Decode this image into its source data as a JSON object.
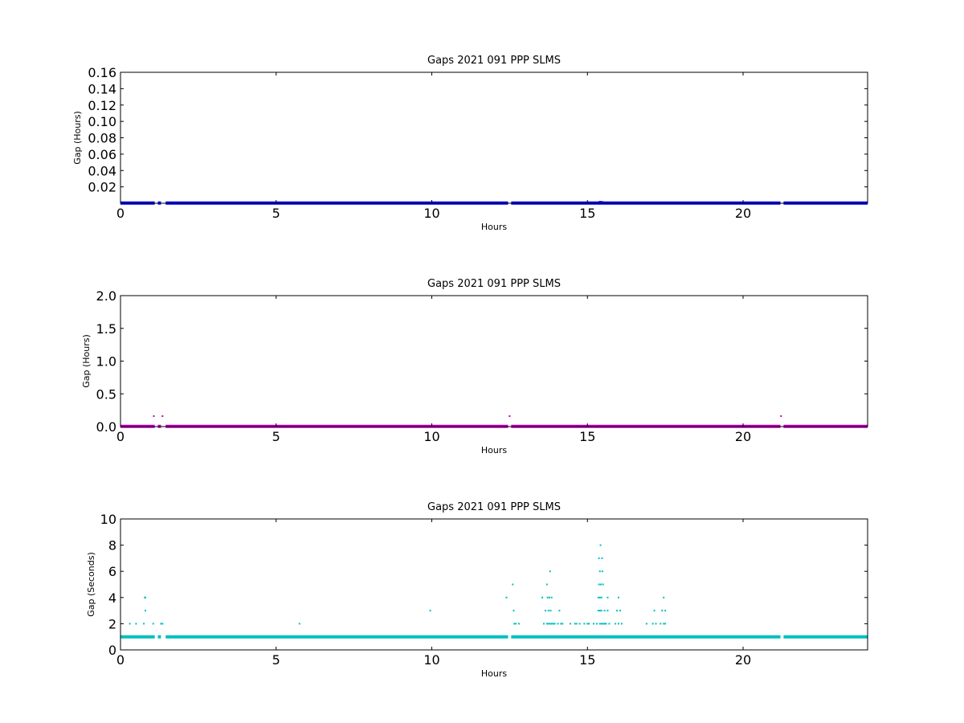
{
  "chart_data": [
    {
      "type": "scatter",
      "title": "Gaps 2021 091 PPP  SLMS",
      "xlabel": "Hours",
      "ylabel": "Gap (Hours)",
      "xlim": [
        0,
        24
      ],
      "ylim": [
        0,
        0.16
      ],
      "x_ticks": [
        0,
        5,
        10,
        15,
        20
      ],
      "x_tick_labels": [
        "0",
        "5",
        "10",
        "15",
        "20"
      ],
      "y_ticks": [
        0.02,
        0.04,
        0.06,
        0.08,
        0.1,
        0.12,
        0.14,
        0.16
      ],
      "y_tick_labels": [
        "0.02",
        "0.04",
        "0.06",
        "0.08",
        "0.10",
        "0.12",
        "0.14",
        "0.16"
      ],
      "grid": false,
      "color": "#0000ff",
      "baseline": {
        "y": 0.0003,
        "x_ranges": [
          [
            0,
            1.1
          ],
          [
            1.2,
            1.3
          ],
          [
            1.45,
            12.45
          ],
          [
            12.55,
            21.2
          ],
          [
            21.3,
            24
          ]
        ]
      },
      "points": [
        {
          "x": 0.8,
          "y": 0.0008
        },
        {
          "x": 15.35,
          "y": 0.0011
        },
        {
          "x": 15.4,
          "y": 0.0019
        },
        {
          "x": 15.45,
          "y": 0.0017
        },
        {
          "x": 15.5,
          "y": 0.0014
        }
      ]
    },
    {
      "type": "scatter",
      "title": "Gaps 2021 091 PPP  SLMS",
      "xlabel": "Hours",
      "ylabel": "Gap (Hours)",
      "xlim": [
        0,
        24
      ],
      "ylim": [
        0,
        2.0
      ],
      "x_ticks": [
        0,
        5,
        10,
        15,
        20
      ],
      "x_tick_labels": [
        "0",
        "5",
        "10",
        "15",
        "20"
      ],
      "y_ticks": [
        0.0,
        0.5,
        1.0,
        1.5,
        2.0
      ],
      "y_tick_labels": [
        "0.0",
        "0.5",
        "1.0",
        "1.5",
        "2.0"
      ],
      "grid": false,
      "color": "#bf00bf",
      "baseline": {
        "y": 0.003,
        "x_ranges": [
          [
            0,
            1.1
          ],
          [
            1.2,
            1.3
          ],
          [
            1.45,
            12.45
          ],
          [
            12.55,
            21.2
          ],
          [
            21.3,
            24
          ]
        ]
      },
      "points": [
        {
          "x": 1.07,
          "y": 0.16
        },
        {
          "x": 1.35,
          "y": 0.16
        },
        {
          "x": 12.5,
          "y": 0.16
        },
        {
          "x": 21.22,
          "y": 0.16
        }
      ]
    },
    {
      "type": "scatter",
      "title": "Gaps 2021 091 PPP  SLMS",
      "xlabel": "Hours",
      "ylabel": "Gap (Seconds)",
      "xlim": [
        0,
        24
      ],
      "ylim": [
        0,
        10
      ],
      "x_ticks": [
        0,
        5,
        10,
        15,
        20
      ],
      "x_tick_labels": [
        "0",
        "5",
        "10",
        "15",
        "20"
      ],
      "y_ticks": [
        0,
        2,
        4,
        6,
        8,
        10
      ],
      "y_tick_labels": [
        "0",
        "2",
        "4",
        "6",
        "8",
        "10"
      ],
      "grid": false,
      "color": "#00bfbf",
      "baseline": {
        "y": 1,
        "x_ranges": [
          [
            0,
            1.1
          ],
          [
            1.2,
            1.3
          ],
          [
            1.45,
            12.45
          ],
          [
            12.55,
            21.2
          ],
          [
            21.3,
            24
          ]
        ]
      },
      "points": [
        {
          "x": 0.3,
          "y": 2
        },
        {
          "x": 0.5,
          "y": 2
        },
        {
          "x": 0.75,
          "y": 2
        },
        {
          "x": 0.78,
          "y": 4
        },
        {
          "x": 0.8,
          "y": 4
        },
        {
          "x": 0.8,
          "y": 3
        },
        {
          "x": 1.05,
          "y": 2
        },
        {
          "x": 1.3,
          "y": 2
        },
        {
          "x": 1.35,
          "y": 2
        },
        {
          "x": 5.75,
          "y": 2
        },
        {
          "x": 9.95,
          "y": 3
        },
        {
          "x": 12.4,
          "y": 4
        },
        {
          "x": 12.6,
          "y": 5
        },
        {
          "x": 12.63,
          "y": 3
        },
        {
          "x": 12.65,
          "y": 2
        },
        {
          "x": 12.7,
          "y": 2
        },
        {
          "x": 12.8,
          "y": 2
        },
        {
          "x": 13.55,
          "y": 4
        },
        {
          "x": 13.6,
          "y": 2
        },
        {
          "x": 13.65,
          "y": 3
        },
        {
          "x": 13.7,
          "y": 5
        },
        {
          "x": 13.72,
          "y": 4
        },
        {
          "x": 13.75,
          "y": 3
        },
        {
          "x": 13.78,
          "y": 4
        },
        {
          "x": 13.8,
          "y": 6
        },
        {
          "x": 13.82,
          "y": 3
        },
        {
          "x": 13.85,
          "y": 4
        },
        {
          "x": 13.7,
          "y": 2
        },
        {
          "x": 13.75,
          "y": 2
        },
        {
          "x": 13.8,
          "y": 2
        },
        {
          "x": 13.85,
          "y": 2
        },
        {
          "x": 13.9,
          "y": 2
        },
        {
          "x": 13.95,
          "y": 2
        },
        {
          "x": 14.05,
          "y": 2
        },
        {
          "x": 14.1,
          "y": 3
        },
        {
          "x": 14.15,
          "y": 2
        },
        {
          "x": 14.2,
          "y": 2
        },
        {
          "x": 14.45,
          "y": 2
        },
        {
          "x": 14.6,
          "y": 2
        },
        {
          "x": 14.65,
          "y": 2
        },
        {
          "x": 14.75,
          "y": 2
        },
        {
          "x": 14.9,
          "y": 2
        },
        {
          "x": 15.0,
          "y": 2
        },
        {
          "x": 15.05,
          "y": 2
        },
        {
          "x": 15.2,
          "y": 2
        },
        {
          "x": 15.3,
          "y": 2
        },
        {
          "x": 15.35,
          "y": 3
        },
        {
          "x": 15.35,
          "y": 4
        },
        {
          "x": 15.37,
          "y": 5
        },
        {
          "x": 15.37,
          "y": 7
        },
        {
          "x": 15.4,
          "y": 2
        },
        {
          "x": 15.4,
          "y": 3
        },
        {
          "x": 15.4,
          "y": 4
        },
        {
          "x": 15.4,
          "y": 6
        },
        {
          "x": 15.42,
          "y": 8
        },
        {
          "x": 15.43,
          "y": 5
        },
        {
          "x": 15.45,
          "y": 2
        },
        {
          "x": 15.45,
          "y": 3
        },
        {
          "x": 15.45,
          "y": 4
        },
        {
          "x": 15.47,
          "y": 7
        },
        {
          "x": 15.48,
          "y": 6
        },
        {
          "x": 15.5,
          "y": 2
        },
        {
          "x": 15.5,
          "y": 5
        },
        {
          "x": 15.55,
          "y": 2
        },
        {
          "x": 15.55,
          "y": 3
        },
        {
          "x": 15.6,
          "y": 2
        },
        {
          "x": 15.65,
          "y": 3
        },
        {
          "x": 15.65,
          "y": 4
        },
        {
          "x": 15.7,
          "y": 2
        },
        {
          "x": 15.9,
          "y": 2
        },
        {
          "x": 15.95,
          "y": 3
        },
        {
          "x": 16.0,
          "y": 4
        },
        {
          "x": 16.0,
          "y": 2
        },
        {
          "x": 16.05,
          "y": 3
        },
        {
          "x": 16.1,
          "y": 2
        },
        {
          "x": 16.9,
          "y": 2
        },
        {
          "x": 17.1,
          "y": 2
        },
        {
          "x": 17.15,
          "y": 3
        },
        {
          "x": 17.2,
          "y": 2
        },
        {
          "x": 17.35,
          "y": 2
        },
        {
          "x": 17.4,
          "y": 3
        },
        {
          "x": 17.45,
          "y": 4
        },
        {
          "x": 17.45,
          "y": 2
        },
        {
          "x": 17.5,
          "y": 3
        },
        {
          "x": 17.5,
          "y": 2
        }
      ]
    }
  ]
}
